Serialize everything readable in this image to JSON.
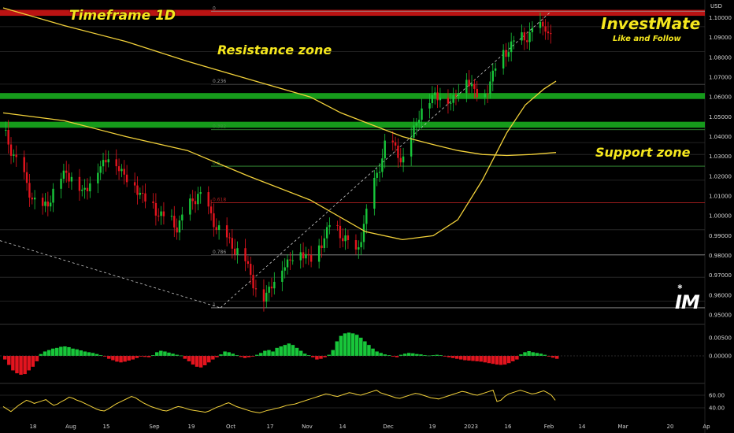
{
  "annotations": {
    "timeframe": "Timeframe 1D",
    "resistance": "Resistance zone",
    "support": "Support zone",
    "brand": "InvestMate",
    "brand_sub": "Like and Follow",
    "logo": "IM"
  },
  "currency": "USD",
  "colors": {
    "up": "#18c63a",
    "down": "#e3141e",
    "ma": "#f2d13a",
    "resistance_band": "#c41414",
    "support_band": "#17a31c",
    "background": "#000000"
  },
  "chart_data": [
    {
      "type": "candlestick",
      "title": "",
      "y_ticks": [
        "1.10000",
        "1.09000",
        "1.08000",
        "1.07000",
        "1.06000",
        "1.05000",
        "1.04000",
        "1.03000",
        "1.02000",
        "1.01000",
        "1.00000",
        "0.99000",
        "0.98000",
        "0.97000",
        "0.96000",
        "0.95000"
      ],
      "ylim": [
        0.95,
        1.105
      ],
      "x_ticks": [
        "18",
        "Aug",
        "15",
        "Sep",
        "19",
        "Oct",
        "17",
        "Nov",
        "14",
        "Dec",
        "19",
        "2023",
        "16",
        "Feb",
        "14",
        "Mar",
        "20",
        "Ap"
      ],
      "fibonacci": [
        {
          "label": "0",
          "value": 1.1033
        },
        {
          "label": "0.236",
          "value": 1.0664
        },
        {
          "label": "0.382",
          "value": 1.0435
        },
        {
          "label": "0.5",
          "value": 1.0251
        },
        {
          "label": "0.618",
          "value": 1.0066
        },
        {
          "label": "0.786",
          "value": 0.9803
        },
        {
          "label": "1",
          "value": 0.9536
        }
      ],
      "zones": [
        {
          "name": "Resistance zone",
          "from": 1.101,
          "to": 1.104
        },
        {
          "name": "Support zone",
          "from": 1.059,
          "to": 1.062
        },
        {
          "name": "Support zone",
          "from": 1.0445,
          "to": 1.0475
        }
      ],
      "moving_averages": [
        {
          "points": [
            [
              0,
              1.052
            ],
            [
              20,
              1.048
            ],
            [
              40,
              1.04
            ],
            [
              60,
              1.033
            ],
            [
              80,
              1.02
            ],
            [
              100,
              1.008
            ],
            [
              118,
              0.992
            ],
            [
              130,
              0.988
            ],
            [
              140,
              0.99
            ],
            [
              148,
              0.998
            ],
            [
              156,
              1.018
            ],
            [
              164,
              1.042
            ],
            [
              170,
              1.056
            ],
            [
              176,
              1.064
            ],
            [
              180,
              1.068
            ]
          ]
        },
        {
          "points": [
            [
              0,
              1.105
            ],
            [
              20,
              1.096
            ],
            [
              40,
              1.088
            ],
            [
              60,
              1.078
            ],
            [
              80,
              1.069
            ],
            [
              100,
              1.06
            ],
            [
              110,
              1.052
            ],
            [
              120,
              1.046
            ],
            [
              130,
              1.04
            ],
            [
              140,
              1.036
            ],
            [
              148,
              1.033
            ],
            [
              156,
              1.031
            ],
            [
              164,
              1.0305
            ],
            [
              172,
              1.031
            ],
            [
              180,
              1.032
            ]
          ]
        }
      ],
      "candles": []
    },
    {
      "type": "bar",
      "title": "",
      "y_ticks": [
        "0.00500",
        "0.00000"
      ],
      "ylim": [
        -0.006,
        0.0075
      ],
      "values": [
        -0.001,
        -0.0025,
        -0.004,
        -0.0048,
        -0.0052,
        -0.005,
        -0.004,
        -0.003,
        -0.0015,
        0.0005,
        0.0012,
        0.0016,
        0.002,
        0.0022,
        0.0025,
        0.0026,
        0.0024,
        0.002,
        0.0018,
        0.0015,
        0.0012,
        0.001,
        0.0008,
        0.0005,
        0.0002,
        -0.0002,
        -0.0008,
        -0.0012,
        -0.0016,
        -0.0018,
        -0.0016,
        -0.0013,
        -0.001,
        -0.0006,
        -0.0002,
        -0.0003,
        -0.0004,
        0.0002,
        0.001,
        0.0014,
        0.0012,
        0.0009,
        0.0006,
        0.0003,
        0.0001,
        -0.0008,
        -0.0015,
        -0.0024,
        -0.003,
        -0.0032,
        -0.0026,
        -0.0018,
        -0.001,
        -0.0004,
        0.0004,
        0.0012,
        0.001,
        0.0006,
        0.0002,
        -0.0003,
        -0.0006,
        -0.0004,
        -0.0002,
        0.0003,
        0.0008,
        0.0014,
        0.0016,
        0.0012,
        0.0022,
        0.0026,
        0.003,
        0.0034,
        0.003,
        0.0022,
        0.0014,
        0.0006,
        0.0002,
        -0.0004,
        -0.001,
        -0.0008,
        -0.0004,
        0.0003,
        0.0016,
        0.004,
        0.0055,
        0.0062,
        0.0064,
        0.0062,
        0.0058,
        0.005,
        0.004,
        0.003,
        0.002,
        0.0012,
        0.0008,
        0.0004,
        0.0002,
        -0.0002,
        -0.0004,
        0.0003,
        0.0006,
        0.0008,
        0.0007,
        0.0005,
        0.0004,
        0.0002,
        0.0001,
        0.0002,
        0.0003,
        0.0002,
        -0.0002,
        -0.0004,
        -0.0006,
        -0.0008,
        -0.001,
        -0.0012,
        -0.0013,
        -0.0014,
        -0.0015,
        -0.0016,
        -0.0018,
        -0.002,
        -0.0022,
        -0.0024,
        -0.0025,
        -0.0024,
        -0.002,
        -0.0015,
        -0.001,
        0.0004,
        0.001,
        0.0013,
        0.001,
        0.0008,
        0.0006,
        0.0003,
        -0.0002,
        -0.0005,
        -0.0008
      ],
      "colors_note": "green above zero, red below zero"
    },
    {
      "type": "line",
      "title": "",
      "y_ticks": [
        "60.00",
        "40.00"
      ],
      "ylim": [
        25,
        75
      ],
      "values": [
        42,
        38,
        34,
        39,
        44,
        48,
        52,
        50,
        47,
        49,
        51,
        53,
        48,
        44,
        46,
        50,
        53,
        57,
        55,
        52,
        50,
        47,
        44,
        41,
        38,
        36,
        35,
        38,
        42,
        46,
        49,
        52,
        55,
        58,
        56,
        52,
        48,
        45,
        42,
        40,
        38,
        36,
        35,
        37,
        40,
        42,
        41,
        39,
        37,
        36,
        35,
        34,
        33,
        35,
        38,
        41,
        43,
        46,
        48,
        45,
        42,
        40,
        38,
        36,
        34,
        33,
        32,
        34,
        36,
        37,
        39,
        40,
        42,
        44,
        45,
        46,
        48,
        50,
        52,
        54,
        56,
        58,
        60,
        62,
        61,
        59,
        58,
        60,
        62,
        64,
        63,
        61,
        60,
        62,
        64,
        66,
        68,
        64,
        62,
        60,
        58,
        56,
        55,
        57,
        59,
        61,
        63,
        62,
        60,
        58,
        56,
        55,
        54,
        56,
        58,
        60,
        62,
        64,
        66,
        65,
        63,
        61,
        60,
        62,
        64,
        66,
        68,
        50,
        52,
        58,
        62,
        64,
        66,
        68,
        66,
        64,
        62,
        63,
        65,
        67,
        64,
        60,
        52
      ]
    }
  ]
}
